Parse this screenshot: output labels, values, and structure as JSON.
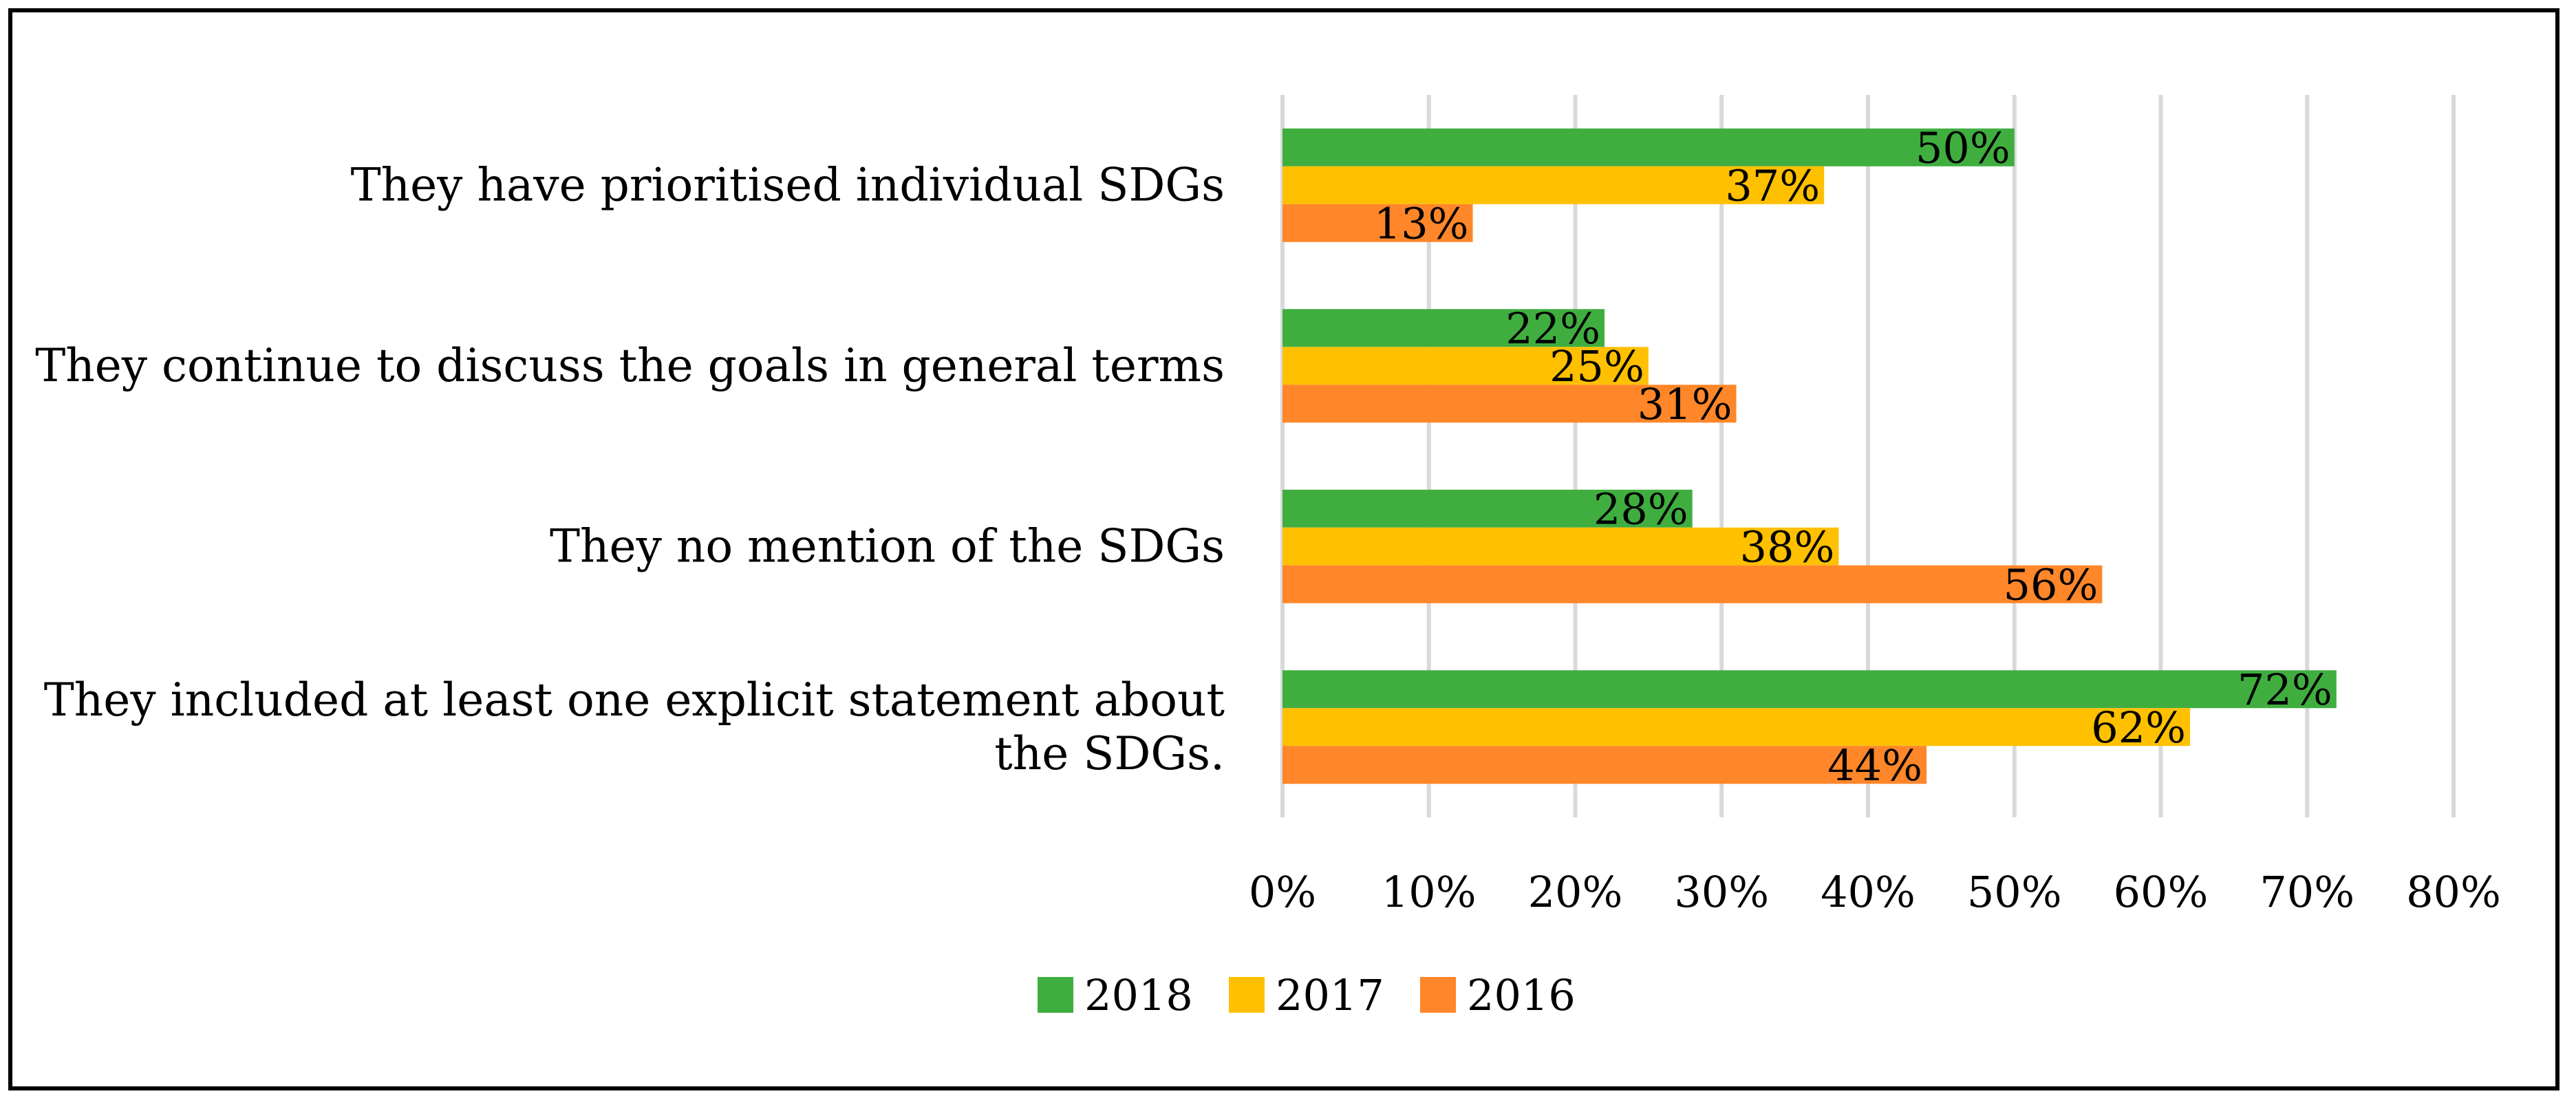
{
  "chart_data": {
    "type": "bar",
    "orientation": "horizontal",
    "categories": [
      [
        "They have prioritised individual SDGs"
      ],
      [
        "They continue to discuss the goals in general terms"
      ],
      [
        "They no mention of the SDGs"
      ],
      [
        "They included at least one explicit statement about",
        "the SDGs."
      ]
    ],
    "series": [
      {
        "name": "2018",
        "color": "#3fae3f",
        "values": [
          50,
          22,
          28,
          72
        ],
        "labels": [
          "50%",
          "22%",
          "28%",
          "72%"
        ]
      },
      {
        "name": "2017",
        "color": "#ffc000",
        "values": [
          37,
          25,
          38,
          62
        ],
        "labels": [
          "37%",
          "25%",
          "38%",
          "62%"
        ]
      },
      {
        "name": "2016",
        "color": "#ff8629",
        "values": [
          13,
          31,
          56,
          44
        ],
        "labels": [
          "13%",
          "31%",
          "56%",
          "44%"
        ]
      }
    ],
    "xlim": [
      0,
      80
    ],
    "xticks": [
      "0%",
      "10%",
      "20%",
      "30%",
      "40%",
      "50%",
      "60%",
      "70%",
      "80%"
    ],
    "grid": true,
    "gridline_color": "#d9d9d9",
    "legend_position": "bottom"
  }
}
